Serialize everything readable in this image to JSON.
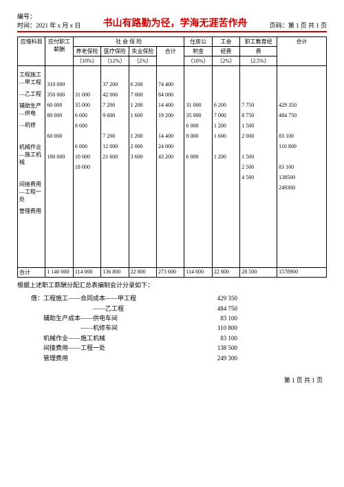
{
  "header": {
    "docnum_label": "编号：",
    "time_label": "时间：2021 年 x 月 x 日",
    "title": "书山有路勤为径，学海无涯苦作舟",
    "page_label": "页码：第 1 页 共 1 页"
  },
  "table": {
    "group_social": "社 会 保 险",
    "group_housing": "住房公",
    "group_union": "工会",
    "group_edu": "职工教育经",
    "h_subject": "应借科目",
    "h_salary": "应付职工薪酬",
    "h_pension": "养老保险",
    "h_medical": "医疗保险",
    "h_unemp": "失业保险",
    "h_subtotal": "合计",
    "h_housing": "积金",
    "h_union": "经费",
    "h_edu": "费",
    "h_total": "合计",
    "r_pension": "（10%）",
    "r_medical": "（12%）",
    "r_unemp": "（2%）",
    "r_housing": "（10%）",
    "r_union": "（2%）",
    "r_edu": "（2.5%）",
    "subjects": [
      "工程施工—甲工程",
      "—乙工程",
      "辅助生产—供电",
      "—机修",
      "",
      "机械作业—施工机械",
      "",
      "间接费用—工程一处",
      "管理费用"
    ],
    "c_salary": [
      "",
      "310 000",
      "350 000",
      "60 000",
      "80 000",
      "",
      "60 000",
      "",
      "180 000",
      ""
    ],
    "c_pension": [
      "",
      "",
      "31 000",
      "35 000",
      "6 000",
      "8 000",
      "",
      "6 000",
      "10 000",
      "18 000",
      ""
    ],
    "c_medical": [
      "",
      "37 200",
      "42 000",
      "7 200",
      "9 600",
      "",
      "7 200",
      "12 000",
      "21 600",
      ""
    ],
    "c_unemp": [
      "",
      "6 200",
      "7 000",
      "1 200",
      "1 600",
      "",
      "1 200",
      "2 000",
      "3 600",
      ""
    ],
    "c_sub": [
      "",
      "74 400",
      "84 000",
      "14 400",
      "19 200",
      "",
      "14 400",
      "24 000",
      "43 200",
      ""
    ],
    "c_housing": [
      "",
      "",
      "",
      "31 000",
      "35 000",
      "6 000",
      "8 000",
      "",
      "6 000",
      "",
      ""
    ],
    "c_union": [
      "",
      "",
      "",
      "6 200",
      "7 000",
      "1 200",
      "1 600",
      "",
      "1 200",
      "",
      ""
    ],
    "c_edu": [
      "",
      "",
      "",
      "7 750",
      "8 750",
      "1 500",
      "2 000",
      "",
      "1 500",
      "2 500",
      "4 500",
      ""
    ],
    "c_total": [
      "",
      "",
      "",
      "429 350",
      "484 750",
      "",
      "83 100",
      "110 800",
      "",
      "83 100",
      "138500",
      "249300"
    ],
    "sum_label": "合计",
    "s_salary": "1 140 000",
    "s_pension": "114 000",
    "s_medical": "136 800",
    "s_unemp": "22 800",
    "s_sub": "273 600",
    "s_housing": "114 000",
    "s_union": "22 800",
    "s_edu": "28 500",
    "s_total": "1578900"
  },
  "note": "根据上述职工薪酬分配汇总表编制会计分录如下：",
  "ledger": [
    {
      "l": "借：工程施工——合同成本——甲工程",
      "a": "429 350"
    },
    {
      "l": "　　　　　　　　　　——乙工程",
      "a": "484 750"
    },
    {
      "l": "　　辅助生产成本——供电车间",
      "a": "83 100"
    },
    {
      "l": "　　　　　　　　——机修车间",
      "a": "110 800"
    },
    {
      "l": "　　机械作业——施工机械",
      "a": "83 100"
    },
    {
      "l": "　　间接费用——工程一处",
      "a": "138 500"
    },
    {
      "l": "　　管理费用",
      "a": "249 300"
    }
  ],
  "footer": "第 1 页 共 1 页"
}
